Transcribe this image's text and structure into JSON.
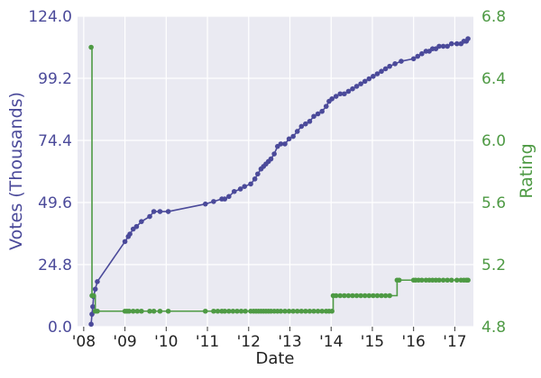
{
  "chart_data": {
    "type": "line",
    "title": "",
    "xlabel": "Date",
    "ylabel_left": "Votes (Thousands)",
    "ylabel_right": "Rating",
    "x_ticks": [
      "'08",
      "'09",
      "'10",
      "'11",
      "'12",
      "'13",
      "'14",
      "'15",
      "'16",
      "'17"
    ],
    "ylim_left": [
      0,
      124
    ],
    "ylim_right": [
      4.8,
      6.8
    ],
    "yticks_left": [
      "0.0",
      "24.8",
      "49.6",
      "74.4",
      "99.2",
      "124.0"
    ],
    "yticks_right": [
      "4.8",
      "5.2",
      "5.6",
      "6.0",
      "6.4",
      "6.8"
    ],
    "xlim": [
      2007.85,
      2017.45
    ],
    "grid": true,
    "colors": {
      "votes": "#4b4a9a",
      "rating": "#4e9a44",
      "background": "#eaeaf2",
      "grid": "#ffffff"
    },
    "series": [
      {
        "axis": "left",
        "x": [
          2008.18,
          2008.2,
          2008.22,
          2008.24,
          2008.28,
          2008.33,
          2009.0,
          2009.08,
          2009.12,
          2009.2,
          2009.28,
          2009.4,
          2009.6,
          2009.7,
          2009.85,
          2010.05,
          2010.95,
          2011.15,
          2011.35,
          2011.42,
          2011.52,
          2011.65,
          2011.8,
          2011.9,
          2012.05,
          2012.15,
          2012.22,
          2012.3,
          2012.36,
          2012.42,
          2012.48,
          2012.54,
          2012.62,
          2012.7,
          2012.78,
          2012.88,
          2012.98,
          2013.08,
          2013.18,
          2013.28,
          2013.38,
          2013.48,
          2013.58,
          2013.68,
          2013.78,
          2013.88,
          2013.95,
          2014.02,
          2014.12,
          2014.22,
          2014.32,
          2014.42,
          2014.52,
          2014.62,
          2014.72,
          2014.82,
          2014.92,
          2015.02,
          2015.12,
          2015.22,
          2015.32,
          2015.42,
          2015.55,
          2015.7,
          2016.0,
          2016.1,
          2016.2,
          2016.3,
          2016.38,
          2016.46,
          2016.54,
          2016.62,
          2016.72,
          2016.82,
          2016.92,
          2017.05,
          2017.15,
          2017.22,
          2017.28,
          2017.32
        ],
        "values": [
          1,
          5,
          8,
          12,
          15,
          18,
          34,
          36,
          37,
          39,
          40,
          42,
          44,
          46,
          46,
          46,
          49,
          50,
          51,
          51,
          52,
          54,
          55,
          56,
          57,
          59,
          61,
          63,
          64,
          65,
          66,
          67,
          69,
          72,
          73,
          73,
          75,
          76,
          78,
          80,
          81,
          82,
          84,
          85,
          86,
          88,
          90,
          91,
          92,
          93,
          93,
          94,
          95,
          96,
          97,
          98,
          99,
          100,
          101,
          102,
          103,
          104,
          105,
          106,
          107,
          108,
          109,
          110,
          110,
          111,
          111,
          112,
          112,
          112,
          113,
          113,
          113,
          114,
          114,
          115
        ]
      },
      {
        "axis": "right",
        "x": [
          2008.18,
          2008.2,
          2008.22,
          2008.24,
          2008.28,
          2008.33,
          2009.0,
          2009.05,
          2009.1,
          2009.2,
          2009.3,
          2009.4,
          2009.6,
          2009.7,
          2009.85,
          2010.05,
          2010.95,
          2011.15,
          2011.25,
          2011.35,
          2011.42,
          2011.52,
          2011.62,
          2011.72,
          2011.82,
          2011.92,
          2012.05,
          2012.12,
          2012.18,
          2012.24,
          2012.3,
          2012.36,
          2012.42,
          2012.48,
          2012.54,
          2012.62,
          2012.7,
          2012.78,
          2012.88,
          2012.98,
          2013.08,
          2013.18,
          2013.28,
          2013.38,
          2013.48,
          2013.58,
          2013.68,
          2013.78,
          2013.88,
          2013.95,
          2014.02,
          2014.05,
          2014.12,
          2014.22,
          2014.32,
          2014.42,
          2014.52,
          2014.62,
          2014.72,
          2014.82,
          2014.92,
          2015.02,
          2015.12,
          2015.22,
          2015.32,
          2015.42,
          2015.6,
          2015.65,
          2016.0,
          2016.05,
          2016.12,
          2016.2,
          2016.3,
          2016.38,
          2016.46,
          2016.54,
          2016.62,
          2016.72,
          2016.82,
          2016.92,
          2017.05,
          2017.15,
          2017.22,
          2017.28,
          2017.32
        ],
        "values": [
          6.6,
          5.0,
          5.0,
          5.0,
          4.9,
          4.9,
          4.9,
          4.9,
          4.9,
          4.9,
          4.9,
          4.9,
          4.9,
          4.9,
          4.9,
          4.9,
          4.9,
          4.9,
          4.9,
          4.9,
          4.9,
          4.9,
          4.9,
          4.9,
          4.9,
          4.9,
          4.9,
          4.9,
          4.9,
          4.9,
          4.9,
          4.9,
          4.9,
          4.9,
          4.9,
          4.9,
          4.9,
          4.9,
          4.9,
          4.9,
          4.9,
          4.9,
          4.9,
          4.9,
          4.9,
          4.9,
          4.9,
          4.9,
          4.9,
          4.9,
          4.9,
          5.0,
          5.0,
          5.0,
          5.0,
          5.0,
          5.0,
          5.0,
          5.0,
          5.0,
          5.0,
          5.0,
          5.0,
          5.0,
          5.0,
          5.0,
          5.1,
          5.1,
          5.1,
          5.1,
          5.1,
          5.1,
          5.1,
          5.1,
          5.1,
          5.1,
          5.1,
          5.1,
          5.1,
          5.1,
          5.1,
          5.1,
          5.1,
          5.1,
          5.1
        ]
      }
    ]
  }
}
